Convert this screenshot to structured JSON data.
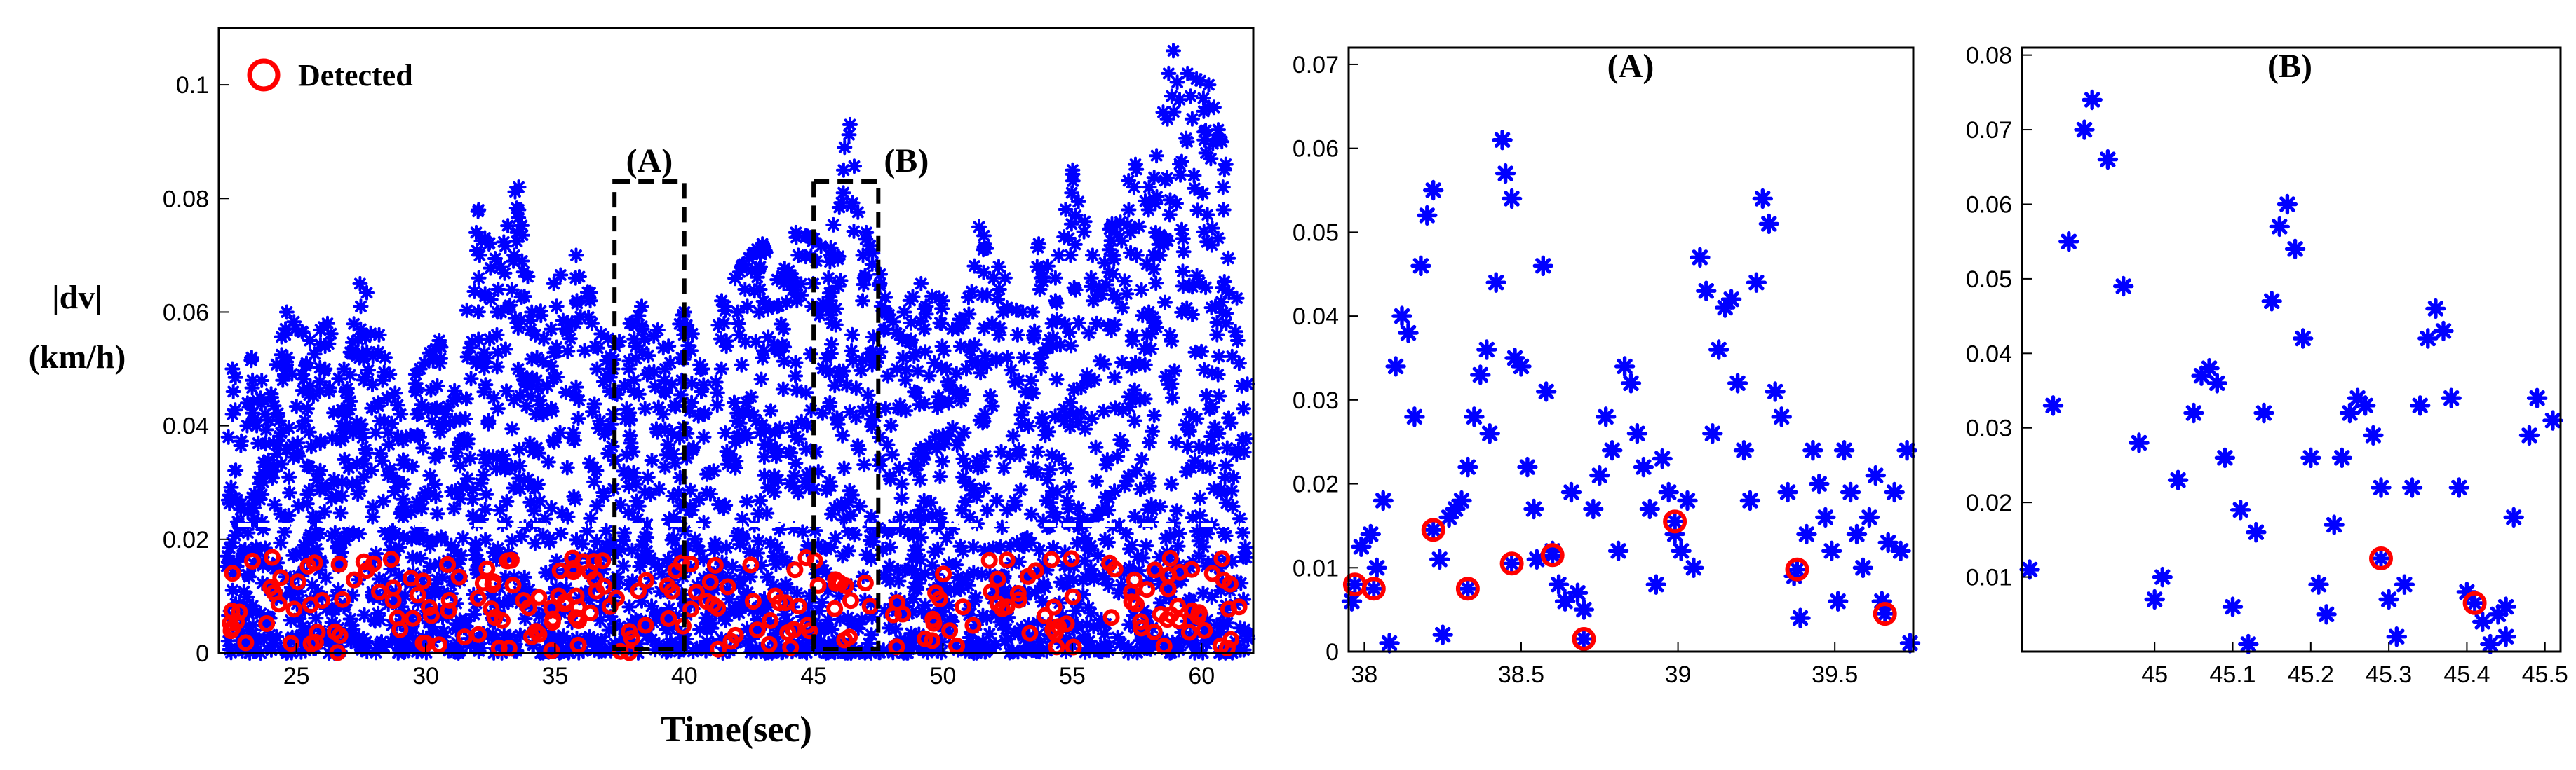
{
  "chart_data": [
    {
      "type": "scatter",
      "panel": "main",
      "xlabel": "Time(sec)",
      "ylabel": [
        "|dv|",
        "(km/h)"
      ],
      "xlim": [
        22,
        62
      ],
      "ylim": [
        0,
        0.11
      ],
      "xticks": [
        "25",
        "30",
        "35",
        "40",
        "45",
        "50",
        "55",
        "60"
      ],
      "xtick_values": [
        25,
        30,
        35,
        40,
        45,
        50,
        55,
        60
      ],
      "yticks": [
        "0",
        "0.02",
        "0.04",
        "0.06",
        "0.08",
        "0.1"
      ],
      "ytick_values": [
        0,
        0.02,
        0.04,
        0.06,
        0.08,
        0.1
      ],
      "threshold": 0.0225,
      "legend": {
        "label": "Detected",
        "placement": "top-left"
      },
      "regions": [
        {
          "label": "(A)",
          "x": [
            37.3,
            40
          ],
          "y": [
            0,
            0.083
          ]
        },
        {
          "label": "(B)",
          "x": [
            45,
            47.5
          ],
          "y": [
            0,
            0.083
          ]
        }
      ],
      "series": [
        {
          "color": "#0000ff",
          "marker": "asterisk"
        },
        {
          "name": "Detected",
          "color": "#ff0000",
          "marker": "circle"
        }
      ],
      "peaks": [
        [
          22.5,
          0.05
        ],
        [
          23.2,
          0.052
        ],
        [
          24,
          0.045
        ],
        [
          24.6,
          0.06
        ],
        [
          25.5,
          0.055
        ],
        [
          26.2,
          0.058
        ],
        [
          26.8,
          0.05
        ],
        [
          27.6,
          0.065
        ],
        [
          28.3,
          0.056
        ],
        [
          29,
          0.042
        ],
        [
          29.7,
          0.05
        ],
        [
          30.5,
          0.055
        ],
        [
          31.2,
          0.045
        ],
        [
          32,
          0.078
        ],
        [
          32.8,
          0.068
        ],
        [
          33.5,
          0.082
        ],
        [
          34.2,
          0.06
        ],
        [
          35,
          0.065
        ],
        [
          35.7,
          0.07
        ],
        [
          36.5,
          0.062
        ],
        [
          37.2,
          0.054
        ],
        [
          38,
          0.058
        ],
        [
          38.5,
          0.061
        ],
        [
          39.3,
          0.054
        ],
        [
          40,
          0.06
        ],
        [
          40.8,
          0.05
        ],
        [
          41.5,
          0.062
        ],
        [
          42.2,
          0.068
        ],
        [
          43,
          0.072
        ],
        [
          43.7,
          0.065
        ],
        [
          44.3,
          0.074
        ],
        [
          45,
          0.073
        ],
        [
          45.6,
          0.07
        ],
        [
          46.3,
          0.093
        ],
        [
          47,
          0.074
        ],
        [
          47.7,
          0.065
        ],
        [
          48.4,
          0.06
        ],
        [
          49.2,
          0.065
        ],
        [
          50,
          0.062
        ],
        [
          50.8,
          0.058
        ],
        [
          51.5,
          0.075
        ],
        [
          52.2,
          0.068
        ],
        [
          53,
          0.06
        ],
        [
          53.6,
          0.072
        ],
        [
          54.3,
          0.066
        ],
        [
          55,
          0.085
        ],
        [
          55.8,
          0.07
        ],
        [
          56.5,
          0.075
        ],
        [
          57.3,
          0.086
        ],
        [
          58.1,
          0.082
        ],
        [
          58.8,
          0.106
        ],
        [
          59.5,
          0.102
        ],
        [
          60.2,
          0.1
        ],
        [
          60.9,
          0.09
        ],
        [
          61.5,
          0.055
        ]
      ]
    },
    {
      "type": "scatter",
      "panel": "A",
      "title": "(A)",
      "xlim": [
        37.95,
        39.75
      ],
      "ylim": [
        0,
        0.072
      ],
      "xticks": [
        "38",
        "38.5",
        "39",
        "39.5"
      ],
      "xtick_values": [
        38,
        38.5,
        39,
        39.5
      ],
      "yticks": [
        "0",
        "0.01",
        "0.02",
        "0.03",
        "0.04",
        "0.05",
        "0.06",
        "0.07"
      ],
      "ytick_values": [
        0,
        0.01,
        0.02,
        0.03,
        0.04,
        0.05,
        0.06,
        0.07
      ],
      "points": [
        [
          37.96,
          0.006
        ],
        [
          37.99,
          0.0125
        ],
        [
          38.02,
          0.014
        ],
        [
          38.04,
          0.01
        ],
        [
          38.06,
          0.018
        ],
        [
          38.08,
          0.001
        ],
        [
          38.1,
          0.034
        ],
        [
          38.12,
          0.04
        ],
        [
          38.14,
          0.038
        ],
        [
          38.16,
          0.028
        ],
        [
          38.18,
          0.046
        ],
        [
          38.2,
          0.052
        ],
        [
          38.22,
          0.055
        ],
        [
          38.24,
          0.011
        ],
        [
          38.25,
          0.002
        ],
        [
          38.27,
          0.016
        ],
        [
          38.29,
          0.017
        ],
        [
          38.31,
          0.018
        ],
        [
          38.33,
          0.022
        ],
        [
          38.35,
          0.028
        ],
        [
          38.37,
          0.033
        ],
        [
          38.39,
          0.036
        ],
        [
          38.4,
          0.026
        ],
        [
          38.42,
          0.044
        ],
        [
          38.44,
          0.061
        ],
        [
          38.45,
          0.057
        ],
        [
          38.47,
          0.054
        ],
        [
          38.48,
          0.035
        ],
        [
          38.5,
          0.034
        ],
        [
          38.52,
          0.022
        ],
        [
          38.54,
          0.017
        ],
        [
          38.55,
          0.011
        ],
        [
          38.57,
          0.046
        ],
        [
          38.58,
          0.031
        ],
        [
          38.6,
          0.012
        ],
        [
          38.62,
          0.008
        ],
        [
          38.64,
          0.006
        ],
        [
          38.66,
          0.019
        ],
        [
          38.68,
          0.007
        ],
        [
          38.7,
          0.005
        ],
        [
          38.73,
          0.017
        ],
        [
          38.75,
          0.021
        ],
        [
          38.77,
          0.028
        ],
        [
          38.79,
          0.024
        ],
        [
          38.81,
          0.012
        ],
        [
          38.83,
          0.034
        ],
        [
          38.85,
          0.032
        ],
        [
          38.87,
          0.026
        ],
        [
          38.89,
          0.022
        ],
        [
          38.91,
          0.017
        ],
        [
          38.93,
          0.008
        ],
        [
          38.95,
          0.023
        ],
        [
          38.97,
          0.019
        ],
        [
          38.99,
          0.014
        ],
        [
          39.01,
          0.012
        ],
        [
          39.03,
          0.018
        ],
        [
          39.05,
          0.01
        ],
        [
          39.07,
          0.047
        ],
        [
          39.09,
          0.043
        ],
        [
          39.11,
          0.026
        ],
        [
          39.13,
          0.036
        ],
        [
          39.15,
          0.041
        ],
        [
          39.17,
          0.042
        ],
        [
          39.19,
          0.032
        ],
        [
          39.21,
          0.024
        ],
        [
          39.23,
          0.018
        ],
        [
          39.25,
          0.044
        ],
        [
          39.27,
          0.054
        ],
        [
          39.29,
          0.051
        ],
        [
          39.31,
          0.031
        ],
        [
          39.33,
          0.028
        ],
        [
          39.35,
          0.019
        ],
        [
          39.37,
          0.009
        ],
        [
          39.39,
          0.004
        ],
        [
          39.41,
          0.014
        ],
        [
          39.43,
          0.024
        ],
        [
          39.45,
          0.02
        ],
        [
          39.47,
          0.016
        ],
        [
          39.49,
          0.012
        ],
        [
          39.51,
          0.006
        ],
        [
          39.53,
          0.024
        ],
        [
          39.55,
          0.019
        ],
        [
          39.57,
          0.014
        ],
        [
          39.59,
          0.01
        ],
        [
          39.61,
          0.016
        ],
        [
          39.63,
          0.021
        ],
        [
          39.65,
          0.006
        ],
        [
          39.67,
          0.013
        ],
        [
          39.69,
          0.019
        ],
        [
          39.71,
          0.012
        ],
        [
          39.73,
          0.024
        ],
        [
          39.74,
          0.001
        ]
      ],
      "detected": [
        [
          37.97,
          0.008
        ],
        [
          38.03,
          0.0075
        ],
        [
          38.22,
          0.0145
        ],
        [
          38.33,
          0.0075
        ],
        [
          38.47,
          0.0105
        ],
        [
          38.6,
          0.0115
        ],
        [
          38.7,
          0.0015
        ],
        [
          38.99,
          0.0155
        ],
        [
          39.38,
          0.0098
        ],
        [
          39.66,
          0.0045
        ]
      ]
    },
    {
      "type": "scatter",
      "panel": "B",
      "title": "(B)",
      "xlim": [
        44.83,
        45.52
      ],
      "ylim": [
        0,
        0.081
      ],
      "xticks": [
        "45",
        "45.1",
        "45.2",
        "45.3",
        "45.4",
        "45.5"
      ],
      "xtick_values": [
        45,
        45.1,
        45.2,
        45.3,
        45.4,
        45.5
      ],
      "yticks": [
        "0.01",
        "0.02",
        "0.03",
        "0.04",
        "0.05",
        "0.06",
        "0.07",
        "0.08"
      ],
      "ytick_values": [
        0.01,
        0.02,
        0.03,
        0.04,
        0.05,
        0.06,
        0.07,
        0.08
      ],
      "points": [
        [
          44.84,
          0.011
        ],
        [
          44.87,
          0.033
        ],
        [
          44.89,
          0.055
        ],
        [
          44.91,
          0.07
        ],
        [
          44.92,
          0.074
        ],
        [
          44.94,
          0.066
        ],
        [
          44.96,
          0.049
        ],
        [
          44.98,
          0.028
        ],
        [
          45,
          0.007
        ],
        [
          45.01,
          0.01
        ],
        [
          45.03,
          0.023
        ],
        [
          45.05,
          0.032
        ],
        [
          45.06,
          0.037
        ],
        [
          45.07,
          0.038
        ],
        [
          45.08,
          0.036
        ],
        [
          45.09,
          0.026
        ],
        [
          45.1,
          0.006
        ],
        [
          45.11,
          0.019
        ],
        [
          45.12,
          0.001
        ],
        [
          45.13,
          0.016
        ],
        [
          45.14,
          0.032
        ],
        [
          45.15,
          0.047
        ],
        [
          45.16,
          0.057
        ],
        [
          45.17,
          0.06
        ],
        [
          45.18,
          0.054
        ],
        [
          45.19,
          0.042
        ],
        [
          45.2,
          0.026
        ],
        [
          45.21,
          0.009
        ],
        [
          45.22,
          0.005
        ],
        [
          45.23,
          0.017
        ],
        [
          45.24,
          0.026
        ],
        [
          45.25,
          0.032
        ],
        [
          45.26,
          0.034
        ],
        [
          45.27,
          0.033
        ],
        [
          45.28,
          0.029
        ],
        [
          45.29,
          0.022
        ],
        [
          45.3,
          0.007
        ],
        [
          45.31,
          0.002
        ],
        [
          45.32,
          0.009
        ],
        [
          45.33,
          0.022
        ],
        [
          45.34,
          0.033
        ],
        [
          45.35,
          0.042
        ],
        [
          45.36,
          0.046
        ],
        [
          45.37,
          0.043
        ],
        [
          45.38,
          0.034
        ],
        [
          45.39,
          0.022
        ],
        [
          45.4,
          0.008
        ],
        [
          45.42,
          0.004
        ],
        [
          45.43,
          0.001
        ],
        [
          45.44,
          0.005
        ],
        [
          45.45,
          0.006
        ],
        [
          45.46,
          0.018
        ],
        [
          45.48,
          0.029
        ],
        [
          45.49,
          0.034
        ],
        [
          45.51,
          0.031
        ],
        [
          45.45,
          0.002
        ]
      ],
      "detected": [
        [
          45.29,
          0.0125
        ],
        [
          45.41,
          0.0065
        ]
      ]
    }
  ]
}
